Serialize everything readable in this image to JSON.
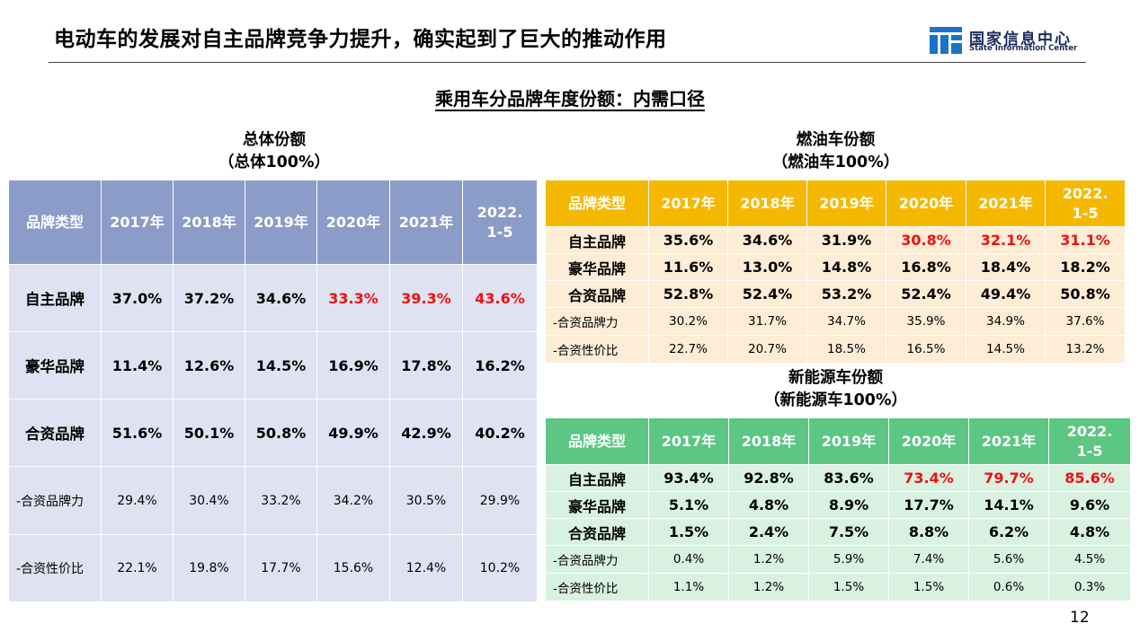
{
  "slide": {
    "title": "电动车的发展对自主品牌竞争力提升，确实起到了巨大的推动作用",
    "heading": "乘用车分品牌年度份额：内需口径",
    "page_number": "12"
  },
  "logo": {
    "cn": "国家信息中心",
    "en": "State Information Center",
    "color": "#1a73c8"
  },
  "highlight_color": "#ee1111",
  "chart_data": [
    {
      "type": "table",
      "title": "总体份额",
      "subtitle": "（总体100%）",
      "header_color": "#8c9cc8",
      "columns": [
        "品牌类型",
        "2017年",
        "2018年",
        "2019年",
        "2020年",
        "2021年",
        "2022.\n1-5"
      ],
      "rows": [
        {
          "label": "自主品牌",
          "sub": false,
          "values": [
            "37.0%",
            "37.2%",
            "34.6%",
            "33.3%",
            "39.3%",
            "43.6%"
          ],
          "highlight": [
            false,
            false,
            false,
            true,
            true,
            true
          ]
        },
        {
          "label": "豪华品牌",
          "sub": false,
          "values": [
            "11.4%",
            "12.6%",
            "14.5%",
            "16.9%",
            "17.8%",
            "16.2%"
          ],
          "highlight": [
            false,
            false,
            false,
            false,
            false,
            false
          ]
        },
        {
          "label": "合资品牌",
          "sub": false,
          "values": [
            "51.6%",
            "50.1%",
            "50.8%",
            "49.9%",
            "42.9%",
            "40.2%"
          ],
          "highlight": [
            false,
            false,
            false,
            false,
            false,
            false
          ]
        },
        {
          "label": "-合资品牌力",
          "sub": true,
          "values": [
            "29.4%",
            "30.4%",
            "33.2%",
            "34.2%",
            "30.5%",
            "29.9%"
          ],
          "highlight": [
            false,
            false,
            false,
            false,
            false,
            false
          ]
        },
        {
          "label": "-合资性价比",
          "sub": true,
          "values": [
            "22.1%",
            "19.8%",
            "17.7%",
            "15.6%",
            "12.4%",
            "10.2%"
          ],
          "highlight": [
            false,
            false,
            false,
            false,
            false,
            false
          ]
        }
      ]
    },
    {
      "type": "table",
      "title": "燃油车份额",
      "subtitle": "（燃油车100%）",
      "header_color": "#f5b800",
      "columns": [
        "品牌类型",
        "2017年",
        "2018年",
        "2019年",
        "2020年",
        "2021年",
        "2022.\n1-5"
      ],
      "rows": [
        {
          "label": "自主品牌",
          "sub": false,
          "values": [
            "35.6%",
            "34.6%",
            "31.9%",
            "30.8%",
            "32.1%",
            "31.1%"
          ],
          "highlight": [
            false,
            false,
            false,
            true,
            true,
            true
          ]
        },
        {
          "label": "豪华品牌",
          "sub": false,
          "values": [
            "11.6%",
            "13.0%",
            "14.8%",
            "16.8%",
            "18.4%",
            "18.2%"
          ],
          "highlight": [
            false,
            false,
            false,
            false,
            false,
            false
          ]
        },
        {
          "label": "合资品牌",
          "sub": false,
          "values": [
            "52.8%",
            "52.4%",
            "53.2%",
            "52.4%",
            "49.4%",
            "50.8%"
          ],
          "highlight": [
            false,
            false,
            false,
            false,
            false,
            false
          ]
        },
        {
          "label": "-合资品牌力",
          "sub": true,
          "values": [
            "30.2%",
            "31.7%",
            "34.7%",
            "35.9%",
            "34.9%",
            "37.6%"
          ],
          "highlight": [
            false,
            false,
            false,
            false,
            false,
            false
          ]
        },
        {
          "label": "-合资性价比",
          "sub": true,
          "values": [
            "22.7%",
            "20.7%",
            "18.5%",
            "16.5%",
            "14.5%",
            "13.2%"
          ],
          "highlight": [
            false,
            false,
            false,
            false,
            false,
            false
          ]
        }
      ]
    },
    {
      "type": "table",
      "title": "新能源车份额",
      "subtitle": "（新能源车100%）",
      "header_color": "#5cc683",
      "columns": [
        "品牌类型",
        "2017年",
        "2018年",
        "2019年",
        "2020年",
        "2021年",
        "2022.\n1-5"
      ],
      "rows": [
        {
          "label": "自主品牌",
          "sub": false,
          "values": [
            "93.4%",
            "92.8%",
            "83.6%",
            "73.4%",
            "79.7%",
            "85.6%"
          ],
          "highlight": [
            false,
            false,
            false,
            true,
            true,
            true
          ]
        },
        {
          "label": "豪华品牌",
          "sub": false,
          "values": [
            "5.1%",
            "4.8%",
            "8.9%",
            "17.7%",
            "14.1%",
            "9.6%"
          ],
          "highlight": [
            false,
            false,
            false,
            false,
            false,
            false
          ]
        },
        {
          "label": "合资品牌",
          "sub": false,
          "values": [
            "1.5%",
            "2.4%",
            "7.5%",
            "8.8%",
            "6.2%",
            "4.8%"
          ],
          "highlight": [
            false,
            false,
            false,
            false,
            false,
            false
          ]
        },
        {
          "label": "-合资品牌力",
          "sub": true,
          "values": [
            "0.4%",
            "1.2%",
            "5.9%",
            "7.4%",
            "5.6%",
            "4.5%"
          ],
          "highlight": [
            false,
            false,
            false,
            false,
            false,
            false
          ]
        },
        {
          "label": "-合资性价比",
          "sub": true,
          "values": [
            "1.1%",
            "1.2%",
            "1.5%",
            "1.5%",
            "0.6%",
            "0.3%"
          ],
          "highlight": [
            false,
            false,
            false,
            false,
            false,
            false
          ]
        }
      ]
    }
  ]
}
